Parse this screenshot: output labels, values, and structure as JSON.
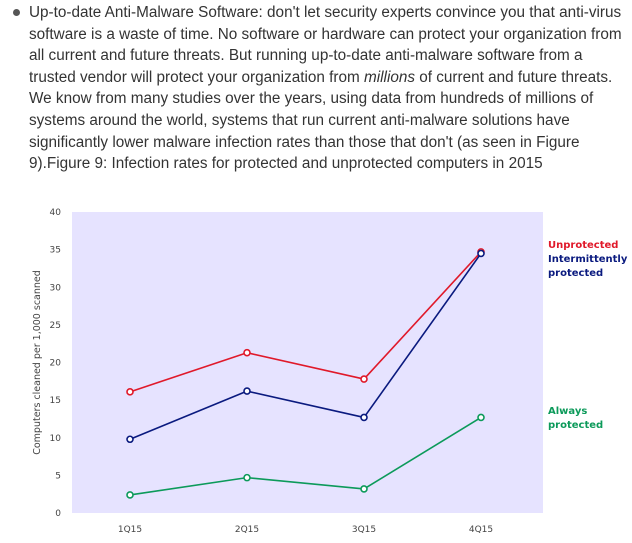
{
  "paragraph": {
    "text_before": "Up-to-date Anti-Malware Software: don't let security experts convince you that anti-virus software is a waste of time. No software or hardware can protect your organization from all current and future threats. But running up-to-date anti-malware software from a trusted vendor will protect your organization from ",
    "emphasis": "millions",
    "text_after": " of current and future threats. We know from many studies over the years, using data from hundreds of millions of systems around the world, systems that run current anti-malware solutions have significantly lower malware infection rates than those that don't (as seen in Figure 9).Figure 9: Infection rates for protected and unprotected computers in 2015"
  },
  "chart_data": {
    "type": "line",
    "categories": [
      "1Q15",
      "2Q15",
      "3Q15",
      "4Q15"
    ],
    "ylabel": "Computers cleaned per 1,000 scanned",
    "xlabel": "",
    "ylim": [
      0,
      40
    ],
    "yticks": [
      0,
      5,
      10,
      15,
      20,
      25,
      30,
      35,
      40
    ],
    "grid": false,
    "background_color": "#e6e3ff",
    "legend_placement": "right",
    "series": [
      {
        "name": "Unprotected",
        "values": [
          16.1,
          21.3,
          17.8,
          34.7
        ],
        "color": "#e0192a"
      },
      {
        "name": "Intermittently protected",
        "values": [
          9.8,
          16.2,
          12.7,
          34.5
        ],
        "color": "#0a1a7f"
      },
      {
        "name": "Always protected",
        "values": [
          2.4,
          4.7,
          3.2,
          12.7
        ],
        "color": "#0c9a5a"
      }
    ]
  }
}
